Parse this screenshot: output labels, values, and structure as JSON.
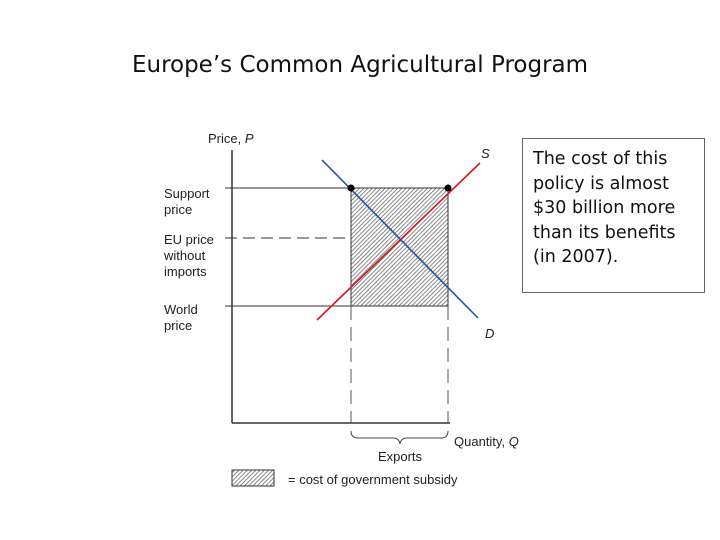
{
  "slide": {
    "title": "Europe’s Common Agricultural Program"
  },
  "diagram": {
    "y_axis_label_main": "Price, ",
    "y_axis_label_var": "P",
    "x_axis_label_main": "Quantity, ",
    "x_axis_label_var": "Q",
    "support_price_lines": [
      "Support",
      "price"
    ],
    "eu_price_lines": [
      "EU price",
      "without",
      "imports"
    ],
    "world_price_lines": [
      "World",
      "price"
    ],
    "supply_label": "S",
    "demand_label": "D",
    "exports_label": "Exports",
    "legend_text": "= cost of government subsidy",
    "colors": {
      "supply_line": "#d11a1a",
      "demand_line": "#1e50a8",
      "axes": "#333333"
    }
  },
  "note": {
    "text": "The cost of this policy is almost $30 billion more than its benefits (in 2007)."
  }
}
